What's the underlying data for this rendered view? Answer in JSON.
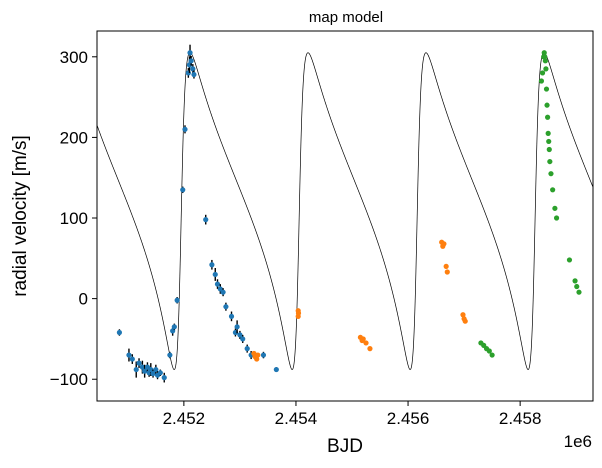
{
  "chart_data": {
    "type": "scatter",
    "title": "map model",
    "xlabel": "BJD",
    "ylabel": "radial velocity [m/s]",
    "x_offset_label": "1e6",
    "xlim": [
      2450450,
      2459300
    ],
    "ylim": [
      -127,
      332
    ],
    "x_ticks": [
      2452000,
      2454000,
      2456000,
      2458000
    ],
    "x_tick_labels": [
      "2.452",
      "2.454",
      "2.456",
      "2.458"
    ],
    "y_ticks": [
      -100,
      0,
      100,
      200,
      300
    ],
    "y_tick_labels": [
      "−100",
      "0",
      "100",
      "200",
      "300"
    ],
    "grid": false,
    "legend": "none",
    "model": {
      "name": "",
      "color": "#000000",
      "period": 2105,
      "peak_times": [
        2452110,
        2454215,
        2456320,
        2458425
      ],
      "k": 196,
      "e": 0.62,
      "omega_deg": 262,
      "gamma": 88,
      "dt_min_offset": -290,
      "x_start": 2450450,
      "x_end": 2459300
    },
    "series": [
      {
        "name": "",
        "color": "#1f77b4",
        "points": [
          [
            2450850,
            -42,
            4
          ],
          [
            2451020,
            -70,
            8
          ],
          [
            2451080,
            -75,
            6
          ],
          [
            2451150,
            -88,
            10
          ],
          [
            2451200,
            -80,
            6
          ],
          [
            2451260,
            -85,
            8
          ],
          [
            2451300,
            -90,
            8
          ],
          [
            2451350,
            -85,
            6
          ],
          [
            2451380,
            -92,
            5
          ],
          [
            2451410,
            -88,
            8
          ],
          [
            2451450,
            -93,
            5
          ],
          [
            2451500,
            -88,
            6
          ],
          [
            2451530,
            -95,
            5
          ],
          [
            2451580,
            -92,
            4
          ],
          [
            2451650,
            -98,
            6
          ],
          [
            2451750,
            -70,
            4
          ],
          [
            2451800,
            -40,
            6
          ],
          [
            2451830,
            -35,
            4
          ],
          [
            2451880,
            -2,
            4
          ],
          [
            2451980,
            135,
            4
          ],
          [
            2452020,
            210,
            5
          ],
          [
            2452080,
            280,
            6
          ],
          [
            2452100,
            290,
            10
          ],
          [
            2452110,
            305,
            10
          ],
          [
            2452130,
            295,
            6
          ],
          [
            2452160,
            285,
            6
          ],
          [
            2452180,
            278,
            5
          ],
          [
            2452390,
            98,
            6
          ],
          [
            2452500,
            42,
            6
          ],
          [
            2452560,
            30,
            8
          ],
          [
            2452600,
            18,
            6
          ],
          [
            2452650,
            12,
            6
          ],
          [
            2452700,
            8,
            5
          ],
          [
            2452750,
            -10,
            5
          ],
          [
            2452850,
            -22,
            6
          ],
          [
            2452920,
            -42,
            5
          ],
          [
            2452950,
            -35,
            8
          ],
          [
            2453000,
            -45,
            5
          ],
          [
            2453050,
            -50,
            5
          ],
          [
            2453130,
            -62,
            5
          ],
          [
            2453200,
            -70,
            5
          ],
          [
            2453420,
            -70,
            4
          ],
          [
            2453650,
            -88,
            3
          ]
        ]
      },
      {
        "name": "",
        "color": "#ff7f0e",
        "points": [
          [
            2453250,
            -68,
            0
          ],
          [
            2453270,
            -72,
            0
          ],
          [
            2453300,
            -75,
            0
          ],
          [
            2453320,
            -70,
            0
          ],
          [
            2454040,
            -15,
            0
          ],
          [
            2454040,
            -22,
            0
          ],
          [
            2454045,
            -18,
            0
          ],
          [
            2455150,
            -48,
            0
          ],
          [
            2455180,
            -52,
            0
          ],
          [
            2455200,
            -50,
            0
          ],
          [
            2455250,
            -55,
            0
          ],
          [
            2455320,
            -62,
            0
          ],
          [
            2456600,
            70,
            0
          ],
          [
            2456620,
            65,
            0
          ],
          [
            2456640,
            68,
            0
          ],
          [
            2456680,
            40,
            0
          ],
          [
            2456700,
            33,
            0
          ],
          [
            2456980,
            -20,
            0
          ],
          [
            2457000,
            -25,
            0
          ],
          [
            2457020,
            -28,
            0
          ]
        ]
      },
      {
        "name": "",
        "color": "#2ca02c",
        "points": [
          [
            2457300,
            -55,
            0
          ],
          [
            2457350,
            -58,
            0
          ],
          [
            2457400,
            -62,
            0
          ],
          [
            2457450,
            -65,
            0
          ],
          [
            2457500,
            -70,
            0
          ],
          [
            2458380,
            270,
            0
          ],
          [
            2458400,
            280,
            0
          ],
          [
            2458420,
            300,
            0
          ],
          [
            2458430,
            305,
            0
          ],
          [
            2458440,
            300,
            0
          ],
          [
            2458450,
            295,
            0
          ],
          [
            2458460,
            285,
            0
          ],
          [
            2458470,
            260,
            0
          ],
          [
            2458480,
            240,
            0
          ],
          [
            2458490,
            225,
            0
          ],
          [
            2458500,
            205,
            0
          ],
          [
            2458510,
            195,
            0
          ],
          [
            2458520,
            185,
            0
          ],
          [
            2458530,
            170,
            0
          ],
          [
            2458550,
            155,
            0
          ],
          [
            2458580,
            135,
            0
          ],
          [
            2458620,
            112,
            0
          ],
          [
            2458650,
            100,
            0
          ],
          [
            2458880,
            48,
            0
          ],
          [
            2458980,
            22,
            0
          ],
          [
            2459010,
            15,
            0
          ],
          [
            2459050,
            8,
            0
          ]
        ]
      }
    ]
  }
}
